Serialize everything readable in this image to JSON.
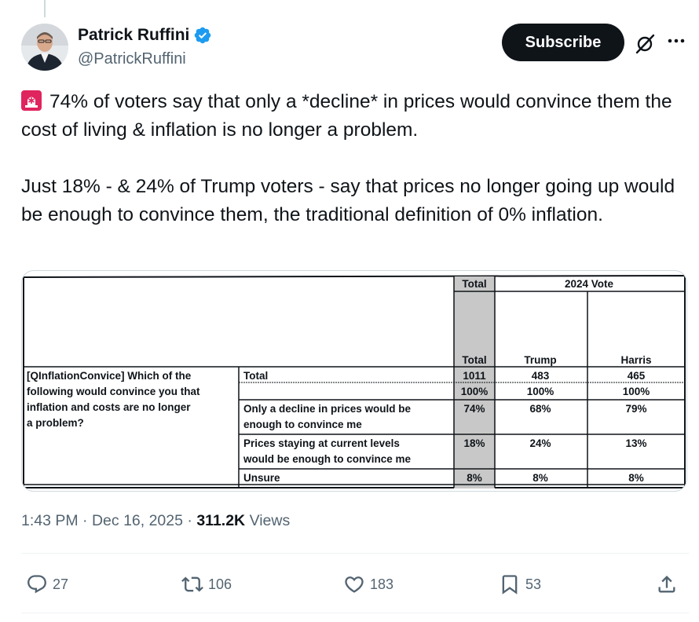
{
  "author": {
    "name": "Patrick Ruffini",
    "handle": "@PatrickRuffini"
  },
  "buttons": {
    "subscribe": "Subscribe"
  },
  "tweet": {
    "line1": "74% of voters say that only a *decline* in prices would convince them the cost of living & inflation is no longer a problem.",
    "line2": "Just 18% - & 24% of Trump voters - say that prices no longer going up would be enough to convince them, the traditional definition of 0% inflation."
  },
  "table": {
    "total_label": "Total",
    "group_label": "2024 Vote",
    "col_total": "Total",
    "col_trump": "Trump",
    "col_harris": "Harris",
    "question": [
      "[QInflationConvice] Which of the",
      "following would convince you that",
      "inflation and costs are no longer",
      "a problem?"
    ],
    "rows": [
      {
        "label": [
          "Total"
        ],
        "total": "1011",
        "trump": "483",
        "harris": "465"
      },
      {
        "label": [
          ""
        ],
        "total": "100%",
        "trump": "100%",
        "harris": "100%"
      },
      {
        "label": [
          "Only a decline in prices would be",
          "enough to convince me"
        ],
        "total": "74%",
        "trump": "68%",
        "harris": "79%"
      },
      {
        "label": [
          "Prices staying at current levels",
          "would be enough to convince me"
        ],
        "total": "18%",
        "trump": "24%",
        "harris": "13%"
      },
      {
        "label": [
          "Unsure"
        ],
        "total": "8%",
        "trump": "8%",
        "harris": "8%"
      }
    ]
  },
  "meta": {
    "time": "1:43 PM",
    "date": "Dec 16, 2025",
    "views_count": "311.2K",
    "views_label": "Views",
    "separator": "·"
  },
  "stats": {
    "replies": "27",
    "reposts": "106",
    "likes": "183",
    "bookmarks": "53"
  },
  "icons": [
    "verified-badge-icon",
    "grok-icon",
    "more-icon",
    "siren-icon",
    "reply-icon",
    "repost-icon",
    "like-icon",
    "bookmark-icon",
    "share-icon"
  ],
  "colors": {
    "verified": "#1d9bf0",
    "siren": "#e0245e",
    "secondary_text": "#536471",
    "table_shade": "#c8c8c8"
  }
}
